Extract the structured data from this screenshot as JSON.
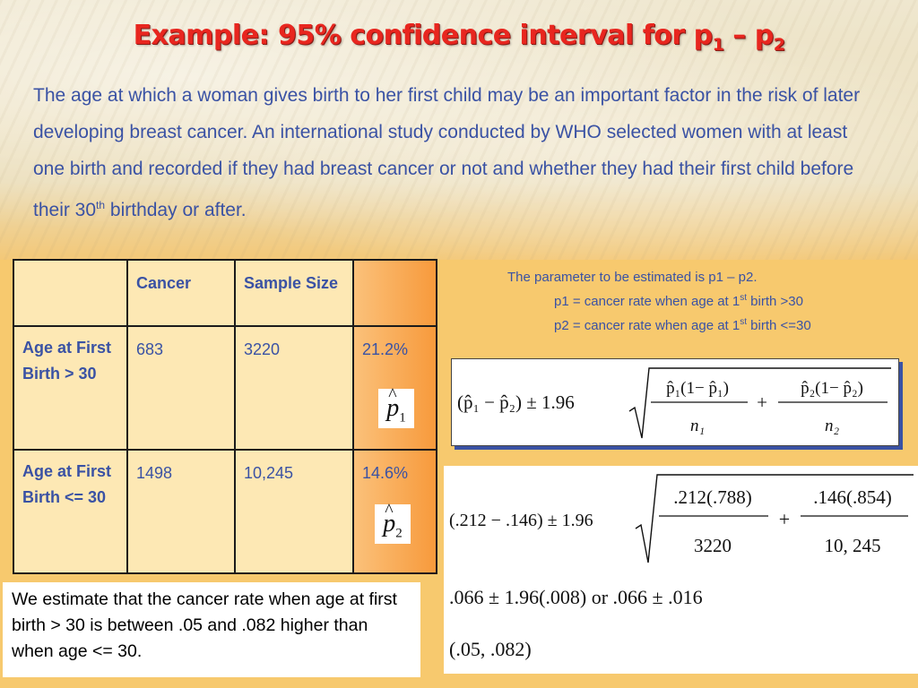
{
  "slide": {
    "title": "Example: 95% confidence interval for p",
    "title_sub1": "1",
    "title_dash": " – p",
    "title_sub2": "2",
    "intro_main": "The age at which a woman gives birth to her first child may be an important factor in the risk of later developing breast cancer. An international study conducted by WHO selected women with at least one birth and recorded if they had breast cancer or not and whether they had their first child before their 30",
    "intro_sup": "th",
    "intro_end": " birthday or after."
  },
  "table": {
    "headers": [
      "",
      "Cancer",
      "Sample Size",
      ""
    ],
    "rows": [
      {
        "label": "Age at First Birth > 30",
        "cancer": "683",
        "size": "3220",
        "pct": "21.2%",
        "symbol": "p",
        "symbol_sub": "1"
      },
      {
        "label": "Age at First Birth <= 30",
        "cancer": "1498",
        "size": "10,245",
        "pct": "14.6%",
        "symbol": "p",
        "symbol_sub": "2"
      }
    ]
  },
  "parameter": {
    "line1": "The parameter to be estimated is p1 – p2.",
    "line2_pre": "p1 = cancer rate when age at 1",
    "line2_sup": "st",
    "line2_post": " birth >30",
    "line3_pre": "p2 = cancer rate when age at 1",
    "line3_sup": "st",
    "line3_post": " birth <=30"
  },
  "formula": {
    "left": "(p̂₁ − p̂₂) ± 1.96",
    "num1": "p̂₁(1− p̂₁)",
    "den1": "n₁",
    "plus": "+",
    "num2": "p̂₂(1− p̂₂)",
    "den2": "n₂"
  },
  "calculation": {
    "left": "(.212 − .146) ± 1.96",
    "num1": ".212(.788)",
    "den1": "3220",
    "plus": "+",
    "num2": ".146(.854)",
    "den2": "10, 245",
    "line2": ".066 ± 1.96(.008) or .066 ± .016",
    "line3": "(.05, .082)"
  },
  "conclusion": "We estimate that the cancer rate when age at first birth > 30 is between .05 and .082 higher than when age <= 30.",
  "colors": {
    "title": "#e8261f",
    "body_text": "#3a52a4",
    "table_fill": "#fde8b4",
    "accent_orange": "#f79a3c",
    "background": "#f7c96e"
  }
}
